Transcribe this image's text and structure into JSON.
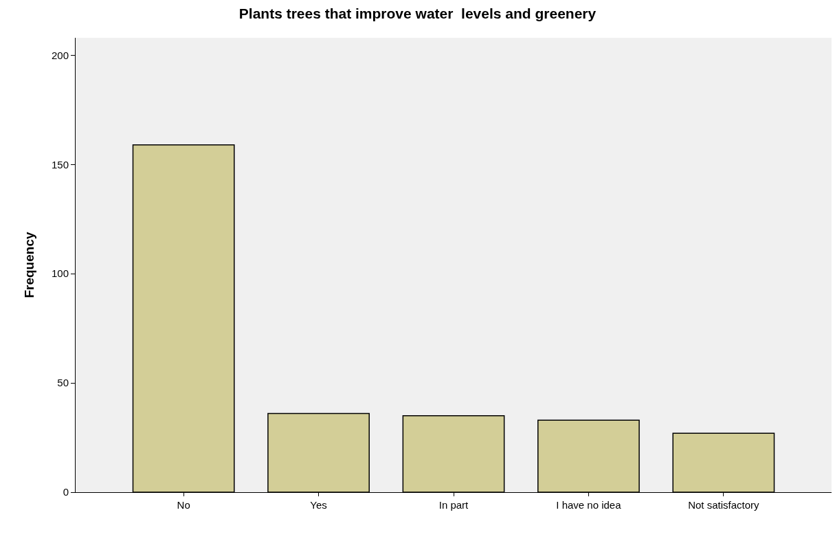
{
  "chart_data": {
    "type": "bar",
    "title": "Plants trees that improve water  levels and greenery",
    "ylabel": "Frequency",
    "categories": [
      "No",
      "Yes",
      "In part",
      "I have no idea",
      "Not satisfactory"
    ],
    "values": [
      159,
      36,
      35,
      33,
      27
    ],
    "color": "#d3ce97",
    "ylim": [
      0,
      208
    ],
    "yticks": [
      0,
      50,
      100,
      150,
      200
    ],
    "grid": false
  }
}
